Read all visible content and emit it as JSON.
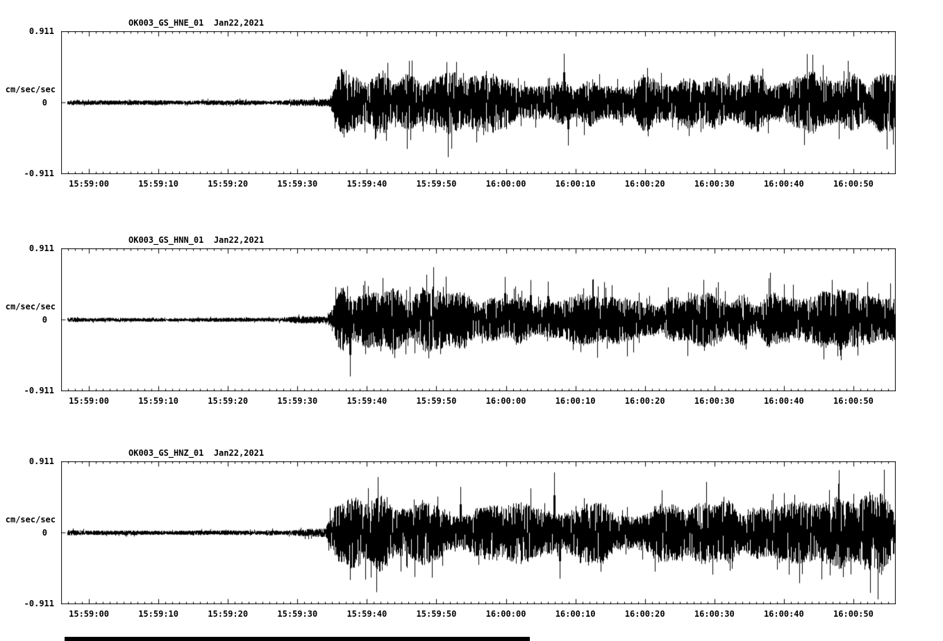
{
  "page": {
    "background_color": "#ffffff",
    "foreground_color": "#000000"
  },
  "chart_data": [
    {
      "type": "line",
      "title": "OK003_GS_HNE_01  Jan22,2021",
      "ylabel": "cm/sec/sec",
      "ylim": [
        -0.911,
        0.911
      ],
      "ytick_labels": [
        "0.911",
        "0",
        "-0.911"
      ],
      "ytick_values": [
        0.911,
        0,
        -0.911
      ],
      "x_tick_labels": [
        "15:59:00",
        "15:59:10",
        "15:59:20",
        "15:59:30",
        "15:59:40",
        "15:59:50",
        "16:00:00",
        "16:00:10",
        "16:00:20",
        "16:00:30",
        "16:00:40",
        "16:00:50"
      ],
      "x_first_tick_offset_seconds": 4,
      "x_tick_interval_seconds": 10,
      "x_minor_tick_interval_seconds": 1,
      "duration_seconds": 120,
      "line_color": "#000000",
      "grid": false,
      "legend": "none",
      "seed": 101,
      "envelope": {
        "quiet_amp": 0.03,
        "pre_onset_time": 30,
        "pre_onset_amp": 0.06,
        "onset_time": 38.5,
        "rise_seconds": 2.0,
        "peak_amp": 0.42,
        "sustain_amp": 0.29,
        "end_amp": 0.33
      },
      "spikes": [
        {
          "t": 47.0,
          "amp": 0.52
        },
        {
          "t": 50.5,
          "amp": 0.55
        },
        {
          "t": 72.3,
          "amp": 0.64
        },
        {
          "t": 72.9,
          "amp": -0.56
        }
      ]
    },
    {
      "type": "line",
      "title": "OK003_GS_HNN_01  Jan22,2021",
      "ylabel": "cm/sec/sec",
      "ylim": [
        -0.911,
        0.911
      ],
      "ytick_labels": [
        "0.911",
        "0",
        "-0.911"
      ],
      "ytick_values": [
        0.911,
        0,
        -0.911
      ],
      "x_tick_labels": [
        "15:59:00",
        "15:59:10",
        "15:59:20",
        "15:59:30",
        "15:59:40",
        "15:59:50",
        "16:00:00",
        "16:00:10",
        "16:00:20",
        "16:00:30",
        "16:00:40",
        "16:00:50"
      ],
      "x_first_tick_offset_seconds": 4,
      "x_tick_interval_seconds": 10,
      "x_minor_tick_interval_seconds": 1,
      "duration_seconds": 120,
      "line_color": "#000000",
      "grid": false,
      "legend": "none",
      "seed": 202,
      "envelope": {
        "quiet_amp": 0.026,
        "pre_onset_time": 30,
        "pre_onset_amp": 0.06,
        "onset_time": 38.3,
        "rise_seconds": 2.2,
        "peak_amp": 0.4,
        "sustain_amp": 0.27,
        "end_amp": 0.31
      },
      "spikes": [
        {
          "t": 41.2,
          "amp": 0.44
        },
        {
          "t": 41.6,
          "amp": -0.74
        },
        {
          "t": 48.0,
          "amp": -0.5
        },
        {
          "t": 63.8,
          "amp": 0.56
        },
        {
          "t": 67.5,
          "amp": 0.52
        },
        {
          "t": 70.0,
          "amp": 0.5
        }
      ]
    },
    {
      "type": "line",
      "title": "OK003_GS_HNZ_01  Jan22,2021",
      "ylabel": "cm/sec/sec",
      "ylim": [
        -0.911,
        0.911
      ],
      "ytick_labels": [
        "0.911",
        "0",
        "-0.911"
      ],
      "ytick_values": [
        0.911,
        0,
        -0.911
      ],
      "x_tick_labels": [
        "15:59:00",
        "15:59:10",
        "15:59:20",
        "15:59:30",
        "15:59:40",
        "15:59:50",
        "16:00:00",
        "16:00:10",
        "16:00:20",
        "16:00:30",
        "16:00:40",
        "16:00:50"
      ],
      "x_first_tick_offset_seconds": 4,
      "x_tick_interval_seconds": 10,
      "x_minor_tick_interval_seconds": 1,
      "duration_seconds": 120,
      "line_color": "#000000",
      "grid": false,
      "legend": "none",
      "seed": 303,
      "envelope": {
        "quiet_amp": 0.03,
        "pre_onset_time": 31,
        "pre_onset_amp": 0.06,
        "onset_time": 38.0,
        "rise_seconds": 1.6,
        "peak_amp": 0.42,
        "sustain_amp": 0.31,
        "end_amp": 0.4
      },
      "spikes": [
        {
          "t": 57.5,
          "amp": 0.6
        },
        {
          "t": 70.9,
          "amp": 0.79
        },
        {
          "t": 71.7,
          "amp": -0.6
        },
        {
          "t": 104.0,
          "amp": 0.52
        },
        {
          "t": 112.5,
          "amp": -0.58
        }
      ]
    }
  ]
}
